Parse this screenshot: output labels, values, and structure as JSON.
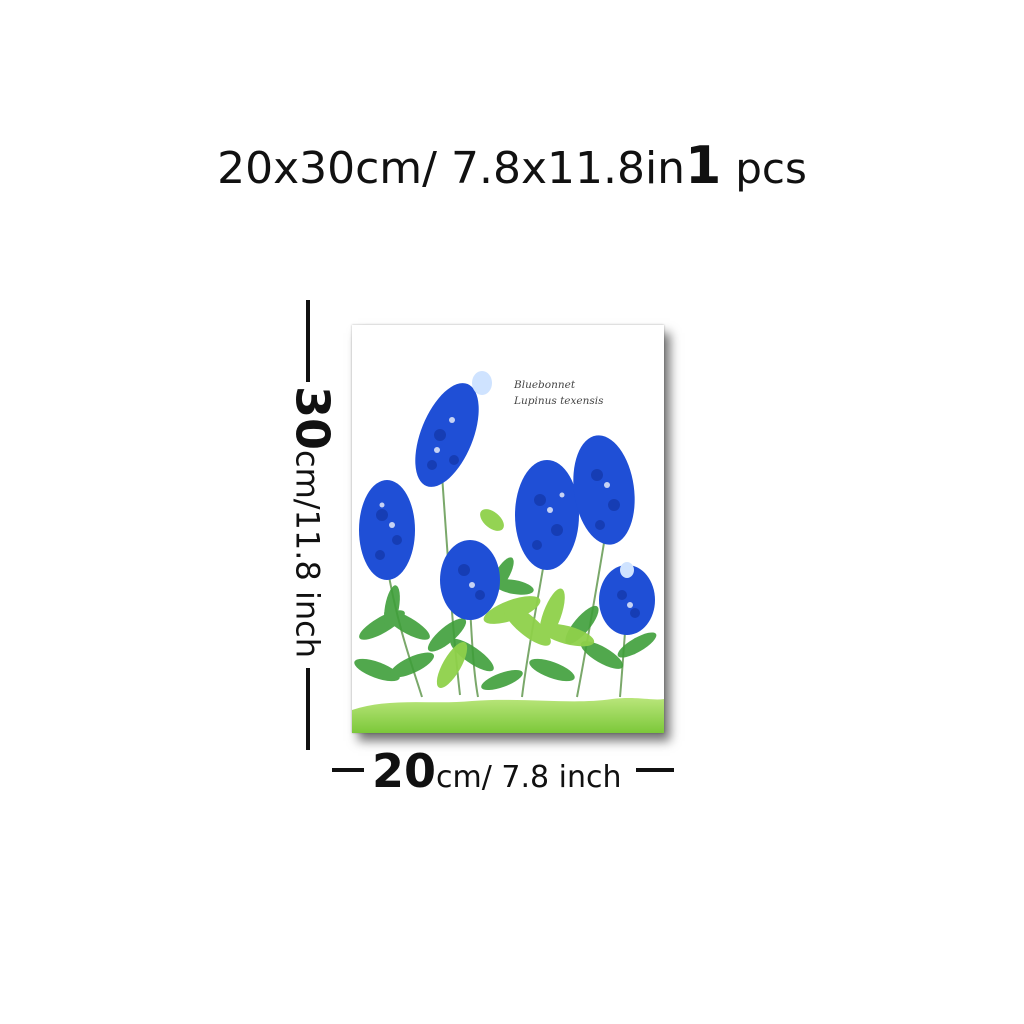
{
  "title": {
    "size_text": "20x30cm/ 7.8x11.8in",
    "quantity_number": "1",
    "quantity_unit": "pcs"
  },
  "height_dimension": {
    "value": "30",
    "unit_text": "cm/11.8 inch"
  },
  "width_dimension": {
    "value": "20",
    "unit_text": "cm/ 7.8 inch"
  },
  "poster": {
    "caption_line1": "Bluebonnet",
    "caption_line2": "Lupinus texensis",
    "illustration": "watercolor bluebonnet flowers with green leaves"
  },
  "colors": {
    "flower_blue": "#1f4fd6",
    "leaf_green": "#3f9f3a",
    "grass_green": "#8fd14a"
  }
}
